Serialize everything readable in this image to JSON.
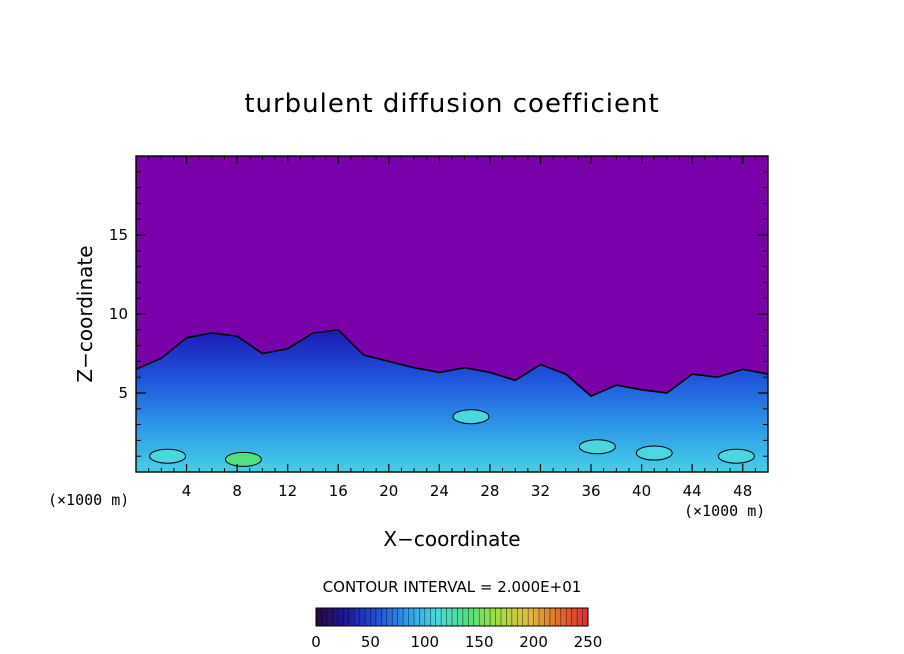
{
  "chart_data": {
    "type": "heatmap",
    "title": "turbulent diffusion coefficient",
    "xlabel": "X−coordinate",
    "ylabel": "Z−coordinate",
    "x_unit": "(×1000 m)",
    "y_unit": "(×1000 m)",
    "xlim": [
      0,
      50
    ],
    "ylim": [
      0,
      20
    ],
    "x_ticks": [
      4,
      8,
      12,
      16,
      20,
      24,
      28,
      32,
      36,
      40,
      44,
      48
    ],
    "y_ticks": [
      5,
      10,
      15
    ],
    "grid": false,
    "contour_interval_label": "CONTOUR INTERVAL = 2.000E+01",
    "contour_interval": 20,
    "colorbar": {
      "min": 0,
      "max": 250,
      "ticks": [
        0,
        50,
        100,
        150,
        200,
        250
      ],
      "colors": [
        "#2a0a3a",
        "#1a1aa0",
        "#1f4fd8",
        "#2f9be8",
        "#4ad8e0",
        "#50e080",
        "#a0e040",
        "#e0c040",
        "#e07030",
        "#e03030"
      ]
    },
    "background_color": "#7a00aa",
    "boundary_height_profile": {
      "x": [
        0,
        2,
        4,
        6,
        8,
        10,
        12,
        14,
        16,
        18,
        20,
        22,
        24,
        26,
        28,
        30,
        32,
        34,
        36,
        38,
        40,
        42,
        44,
        46,
        48,
        50
      ],
      "z": [
        6.5,
        7.2,
        8.5,
        8.8,
        8.6,
        7.5,
        7.8,
        8.8,
        9.0,
        7.4,
        7.0,
        6.6,
        6.3,
        6.6,
        6.3,
        5.8,
        6.8,
        6.2,
        4.8,
        5.5,
        5.2,
        5.0,
        6.2,
        6.0,
        6.5,
        6.2
      ]
    },
    "high_value_regions": [
      {
        "x": 8.5,
        "z": 0.8,
        "level": 120
      },
      {
        "x": 2.5,
        "z": 1.0,
        "level": 100
      },
      {
        "x": 36.5,
        "z": 1.6,
        "level": 100
      },
      {
        "x": 26.5,
        "z": 3.5,
        "level": 80
      },
      {
        "x": 41.0,
        "z": 1.2,
        "level": 100
      },
      {
        "x": 47.5,
        "z": 1.0,
        "level": 80
      }
    ]
  }
}
